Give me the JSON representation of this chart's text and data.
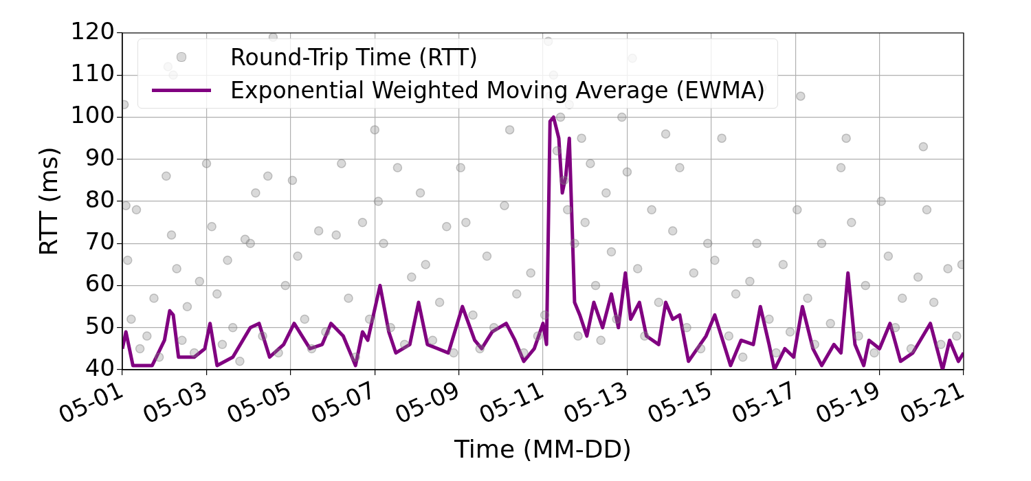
{
  "chart_data": {
    "type": "scatter",
    "xlabel": "Time (MM-DD)",
    "ylabel": "RTT (ms)",
    "xlim": [
      "--05-01",
      "--05-21"
    ],
    "xticks": [
      {
        "value": "--05-01",
        "label": "05-01"
      },
      {
        "value": "--05-03",
        "label": "05-03"
      },
      {
        "value": "--05-05",
        "label": "05-05"
      },
      {
        "value": "--05-07",
        "label": "05-07"
      },
      {
        "value": "--05-09",
        "label": "05-09"
      },
      {
        "value": "--05-11",
        "label": "05-11"
      },
      {
        "value": "--05-13",
        "label": "05-13"
      },
      {
        "value": "--05-15",
        "label": "05-15"
      },
      {
        "value": "--05-17",
        "label": "05-17"
      },
      {
        "value": "--05-19",
        "label": "05-19"
      },
      {
        "value": "--05-21",
        "label": "05-21"
      }
    ],
    "ylim": [
      40,
      120
    ],
    "yticks": [
      40,
      50,
      60,
      70,
      80,
      90,
      100,
      110,
      120
    ],
    "grid": true,
    "legend": "top left",
    "series": [
      {
        "name": "Round-Trip Time (RTT)",
        "type": "scatter",
        "marker": "circle",
        "color": "#808080",
        "x": [
          "--05-01T01:00",
          "--05-01T02:00",
          "--05-01T03:00",
          "--05-01T05:00",
          "--05-01T08:00",
          "--05-01T10:00",
          "--05-01T14:00",
          "--05-01T18:00",
          "--05-01T21:00",
          "--05-02T01:00",
          "--05-02T02:00",
          "--05-02T04:00",
          "--05-02T05:00",
          "--05-02T07:00",
          "--05-02T10:00",
          "--05-02T13:00",
          "--05-02T17:00",
          "--05-02T20:00",
          "--05-03T00:00",
          "--05-03T03:00",
          "--05-03T06:00",
          "--05-03T09:00",
          "--05-03T12:00",
          "--05-03T15:00",
          "--05-03T19:00",
          "--05-03T22:00",
          "--05-04T01:00",
          "--05-04T04:00",
          "--05-04T08:00",
          "--05-04T11:00",
          "--05-04T14:00",
          "--05-04T17:00",
          "--05-04T21:00",
          "--05-05T01:00",
          "--05-05T04:00",
          "--05-05T08:00",
          "--05-05T12:00",
          "--05-05T16:00",
          "--05-05T20:00",
          "--05-06T02:00",
          "--05-06T05:00",
          "--05-06T09:00",
          "--05-06T13:00",
          "--05-06T17:00",
          "--05-06T21:00",
          "--05-07T00:00",
          "--05-07T02:00",
          "--05-07T05:00",
          "--05-07T09:00",
          "--05-07T13:00",
          "--05-07T17:00",
          "--05-07T21:00",
          "--05-08T02:00",
          "--05-08T05:00",
          "--05-08T09:00",
          "--05-08T13:00",
          "--05-08T17:00",
          "--05-08T21:00",
          "--05-09T01:00",
          "--05-09T04:00",
          "--05-09T08:00",
          "--05-09T12:00",
          "--05-09T16:00",
          "--05-09T20:00",
          "--05-10T02:00",
          "--05-10T05:00",
          "--05-10T09:00",
          "--05-10T13:00",
          "--05-10T17:00",
          "--05-10T21:00",
          "--05-11T01:00",
          "--05-11T03:00",
          "--05-11T04:00",
          "--05-11T06:00",
          "--05-11T08:00",
          "--05-11T10:00",
          "--05-11T12:00",
          "--05-11T14:00",
          "--05-11T15:00",
          "--05-11T18:00",
          "--05-11T20:00",
          "--05-11T22:00",
          "--05-12T00:00",
          "--05-12T03:00",
          "--05-12T06:00",
          "--05-12T09:00",
          "--05-12T12:00",
          "--05-12T15:00",
          "--05-12T18:00",
          "--05-12T21:00",
          "--05-13T00:00",
          "--05-13T03:00",
          "--05-13T06:00",
          "--05-13T10:00",
          "--05-13T14:00",
          "--05-13T18:00",
          "--05-13T22:00",
          "--05-14T02:00",
          "--05-14T06:00",
          "--05-14T10:00",
          "--05-14T14:00",
          "--05-14T18:00",
          "--05-14T22:00",
          "--05-15T02:00",
          "--05-15T06:00",
          "--05-15T10:00",
          "--05-15T14:00",
          "--05-15T18:00",
          "--05-15T22:00",
          "--05-16T02:00",
          "--05-16T05:00",
          "--05-16T09:00",
          "--05-16T13:00",
          "--05-16T17:00",
          "--05-16T21:00",
          "--05-17T01:00",
          "--05-17T03:00",
          "--05-17T07:00",
          "--05-17T11:00",
          "--05-17T15:00",
          "--05-17T20:00",
          "--05-18T02:00",
          "--05-18T05:00",
          "--05-18T08:00",
          "--05-18T12:00",
          "--05-18T16:00",
          "--05-18T21:00",
          "--05-19T01:00",
          "--05-19T05:00",
          "--05-19T09:00",
          "--05-19T13:00",
          "--05-19T18:00",
          "--05-19T22:00",
          "--05-20T01:00",
          "--05-20T03:00",
          "--05-20T07:00",
          "--05-20T11:00",
          "--05-20T15:00",
          "--05-20T20:00",
          "--05-20T23:00"
        ],
        "values": [
          103,
          79,
          66,
          52,
          78,
          45,
          48,
          57,
          43,
          86,
          112,
          72,
          110,
          64,
          47,
          55,
          44,
          61,
          89,
          74,
          58,
          46,
          66,
          50,
          42,
          71,
          70,
          82,
          48,
          86,
          119,
          44,
          60,
          85,
          67,
          52,
          45,
          73,
          49,
          72,
          89,
          57,
          43,
          75,
          52,
          97,
          80,
          70,
          50,
          88,
          46,
          62,
          82,
          65,
          47,
          56,
          74,
          44,
          88,
          75,
          53,
          45,
          67,
          50,
          79,
          97,
          58,
          44,
          63,
          48,
          53,
          118,
          105,
          110,
          92,
          100,
          85,
          78,
          103,
          70,
          48,
          95,
          75,
          89,
          60,
          47,
          82,
          68,
          52,
          100,
          87,
          114,
          64,
          48,
          78,
          56,
          96,
          73,
          88,
          50,
          63,
          45,
          70,
          66,
          95,
          48,
          58,
          43,
          61,
          70,
          107,
          52,
          44,
          65,
          49,
          78,
          105,
          57,
          46,
          70,
          51,
          88,
          95,
          75,
          48,
          60,
          44,
          80,
          67,
          50,
          57,
          45,
          62,
          93,
          78,
          56,
          46,
          64,
          48,
          65
        ]
      },
      {
        "name": "Exponential Weighted Moving Average (EWMA)",
        "type": "line",
        "marker": "none",
        "color": "#800080",
        "x": [
          "--05-01T00:00",
          "--05-01T02:00",
          "--05-01T06:00",
          "--05-01T17:00",
          "--05-02T00:00",
          "--05-02T03:00",
          "--05-02T05:00",
          "--05-02T08:00",
          "--05-02T17:00",
          "--05-02T23:00",
          "--05-03T02:00",
          "--05-03T06:00",
          "--05-03T15:00",
          "--05-04T01:00",
          "--05-04T06:00",
          "--05-04T12:00",
          "--05-04T20:00",
          "--05-05T02:00",
          "--05-05T11:00",
          "--05-05T18:00",
          "--05-05T23:00",
          "--05-06T06:00",
          "--05-06T13:00",
          "--05-06T17:00",
          "--05-06T20:00",
          "--05-07T03:00",
          "--05-07T08:00",
          "--05-07T12:00",
          "--05-07T20:00",
          "--05-08T01:00",
          "--05-08T06:00",
          "--05-08T18:00",
          "--05-09T02:00",
          "--05-09T09:00",
          "--05-09T13:00",
          "--05-09T19:00",
          "--05-10T03:00",
          "--05-10T08:00",
          "--05-10T13:00",
          "--05-10T19:00",
          "--05-11T00:00",
          "--05-11T02:00",
          "--05-11T04:00",
          "--05-11T06:00",
          "--05-11T09:00",
          "--05-11T11:00",
          "--05-11T13:00",
          "--05-11T15:00",
          "--05-11T16:00",
          "--05-11T18:00",
          "--05-11T21:00",
          "--05-12T01:00",
          "--05-12T05:00",
          "--05-12T10:00",
          "--05-12T15:00",
          "--05-12T19:00",
          "--05-12T23:00",
          "--05-13T02:00",
          "--05-13T07:00",
          "--05-13T11:00",
          "--05-13T18:00",
          "--05-13T22:00",
          "--05-14T02:00",
          "--05-14T06:00",
          "--05-14T11:00",
          "--05-14T21:00",
          "--05-15T02:00",
          "--05-15T11:00",
          "--05-15T17:00",
          "--05-16T00:00",
          "--05-16T04:00",
          "--05-16T09:00",
          "--05-16T12:00",
          "--05-16T18:00",
          "--05-16T23:00",
          "--05-17T04:00",
          "--05-17T10:00",
          "--05-17T15:00",
          "--05-17T22:00",
          "--05-18T02:00",
          "--05-18T06:00",
          "--05-18T10:00",
          "--05-18T15:00",
          "--05-18T18:00",
          "--05-19T00:00",
          "--05-19T06:00",
          "--05-19T12:00",
          "--05-19T19:00",
          "--05-20T05:00",
          "--05-20T12:00",
          "--05-20T16:00",
          "--05-20T21:00",
          "--05-21T00:00"
        ],
        "values": [
          45,
          49,
          41,
          41,
          47,
          54,
          53,
          43,
          43,
          45,
          51,
          41,
          43,
          50,
          51,
          43,
          46,
          51,
          45,
          46,
          51,
          48,
          41,
          49,
          47,
          60,
          49,
          44,
          46,
          56,
          46,
          44,
          55,
          47,
          45,
          49,
          51,
          47,
          42,
          45,
          51,
          46,
          99,
          100,
          95,
          82,
          86,
          95,
          82,
          56,
          53,
          48,
          56,
          50,
          58,
          50,
          63,
          52,
          56,
          48,
          46,
          56,
          52,
          53,
          42,
          48,
          53,
          41,
          47,
          46,
          55,
          46,
          40,
          45,
          43,
          55,
          45,
          41,
          46,
          44,
          63,
          46,
          41,
          47,
          45,
          51,
          42,
          44,
          51,
          40,
          47,
          42,
          44
        ]
      }
    ]
  }
}
